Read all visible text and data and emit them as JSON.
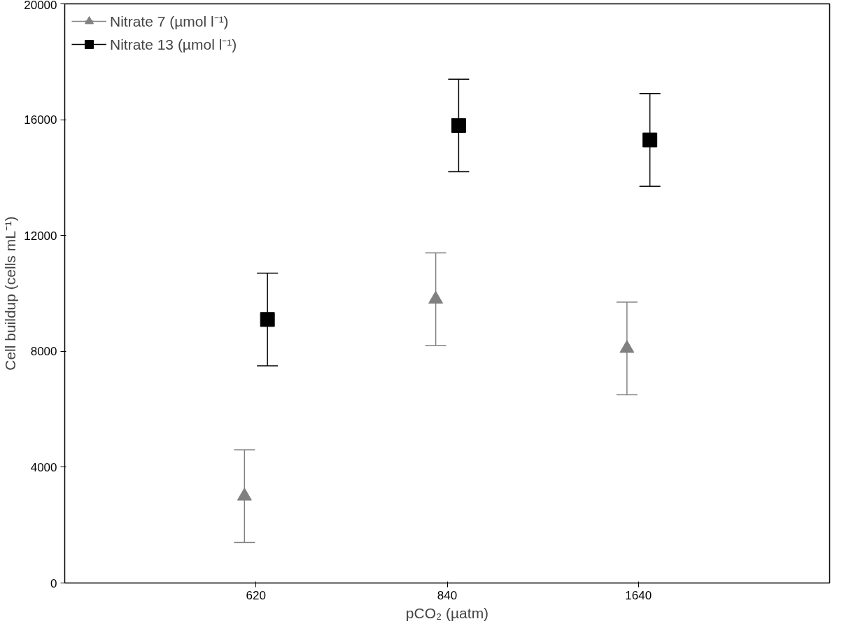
{
  "chart_data": {
    "type": "scatter",
    "xlabel": "pCO₂ (µatm)",
    "ylabel": "Cell buildup (cells mL⁻¹)",
    "categories": [
      "620",
      "840",
      "1640"
    ],
    "series": [
      {
        "name": "Nitrate 7 (µmol l⁻¹)",
        "color": "#808080",
        "marker": "triangle",
        "values": [
          3000,
          9800,
          8100
        ],
        "errors": [
          1600,
          1600,
          1600
        ]
      },
      {
        "name": "Nitrate 13 (µmol l⁻¹)",
        "color": "#000000",
        "marker": "square",
        "values": [
          9100,
          15800,
          15300
        ],
        "errors": [
          1600,
          1600,
          1600
        ]
      }
    ],
    "ylim": [
      0,
      20000
    ],
    "yticks": [
      0,
      4000,
      8000,
      12000,
      16000,
      20000
    ],
    "grid": false,
    "legend": "top left"
  }
}
